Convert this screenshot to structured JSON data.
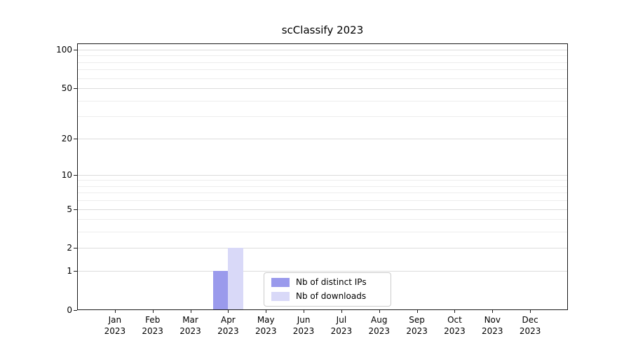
{
  "chart_data": {
    "type": "bar",
    "title": "scClassify 2023",
    "categories": [
      "Jan 2023",
      "Feb 2023",
      "Mar 2023",
      "Apr 2023",
      "May 2023",
      "Jun 2023",
      "Jul 2023",
      "Aug 2023",
      "Sep 2023",
      "Oct 2023",
      "Nov 2023",
      "Dec 2023"
    ],
    "series": [
      {
        "name": "Nb of distinct IPs",
        "color": "#9a9aec",
        "values": [
          0,
          0,
          0,
          1,
          0,
          0,
          0,
          0,
          0,
          0,
          0,
          0
        ]
      },
      {
        "name": "Nb of downloads",
        "color": "#d9d9f8",
        "values": [
          0,
          0,
          0,
          2,
          0,
          0,
          0,
          0,
          0,
          0,
          0,
          0
        ]
      }
    ],
    "yticks": [
      0,
      1,
      2,
      5,
      10,
      20,
      50,
      100
    ],
    "y_minor_ticks": [
      3,
      4,
      6,
      7,
      8,
      9,
      30,
      40,
      60,
      70,
      80,
      90
    ],
    "ylim": [
      0,
      100
    ],
    "yscale": "log1p",
    "xlabel": "",
    "ylabel": "",
    "grid": "horizontal",
    "legend_position": "bottom-center",
    "colors": {
      "background": "#ffffff",
      "grid_minor": "#ededed",
      "grid_major": "#dcdcdc",
      "axis": "#1a1a1a",
      "text": "#000000"
    }
  }
}
